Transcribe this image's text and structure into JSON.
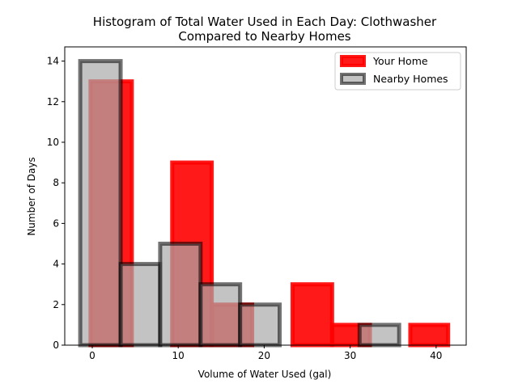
{
  "chart_data": {
    "type": "bar",
    "title_line1": "Histogram of Total Water Used in Each Day: Clothwasher",
    "title_line2": "Compared to Nearby Homes",
    "xlabel": "Volume of Water Used (gal)",
    "ylabel": "Number of Days",
    "xlim": [
      -3.2,
      43.5
    ],
    "ylim": [
      0,
      14.7
    ],
    "xticks": [
      0,
      10,
      20,
      30,
      40
    ],
    "yticks": [
      0,
      2,
      4,
      6,
      8,
      10,
      12,
      14
    ],
    "legend_position": "top-right",
    "series": [
      {
        "name": "Your Home",
        "fill": "#ff0000",
        "fill_opacity": 0.9,
        "edge": "#ff0000",
        "bins": [
          {
            "x0": -0.2,
            "x1": 4.6,
            "count": 13
          },
          {
            "x0": 4.6,
            "x1": 9.3,
            "count": 0
          },
          {
            "x0": 9.3,
            "x1": 13.9,
            "count": 9
          },
          {
            "x0": 13.9,
            "x1": 18.6,
            "count": 2
          },
          {
            "x0": 18.6,
            "x1": 23.3,
            "count": 0
          },
          {
            "x0": 23.3,
            "x1": 27.9,
            "count": 3
          },
          {
            "x0": 27.9,
            "x1": 32.3,
            "count": 1
          },
          {
            "x0": 32.3,
            "x1": 37.0,
            "count": 0
          },
          {
            "x0": 37.0,
            "x1": 41.4,
            "count": 1
          }
        ]
      },
      {
        "name": "Nearby Homes",
        "fill": "#a9a9a9",
        "fill_opacity": 0.7,
        "edge": "#000000",
        "bins": [
          {
            "x0": -1.4,
            "x1": 3.3,
            "count": 14
          },
          {
            "x0": 3.3,
            "x1": 7.9,
            "count": 4
          },
          {
            "x0": 7.9,
            "x1": 12.6,
            "count": 5
          },
          {
            "x0": 12.6,
            "x1": 17.2,
            "count": 3
          },
          {
            "x0": 17.2,
            "x1": 21.8,
            "count": 2
          },
          {
            "x0": 21.8,
            "x1": 26.5,
            "count": 0
          },
          {
            "x0": 26.5,
            "x1": 31.1,
            "count": 0
          },
          {
            "x0": 31.1,
            "x1": 35.7,
            "count": 1
          }
        ]
      }
    ]
  }
}
